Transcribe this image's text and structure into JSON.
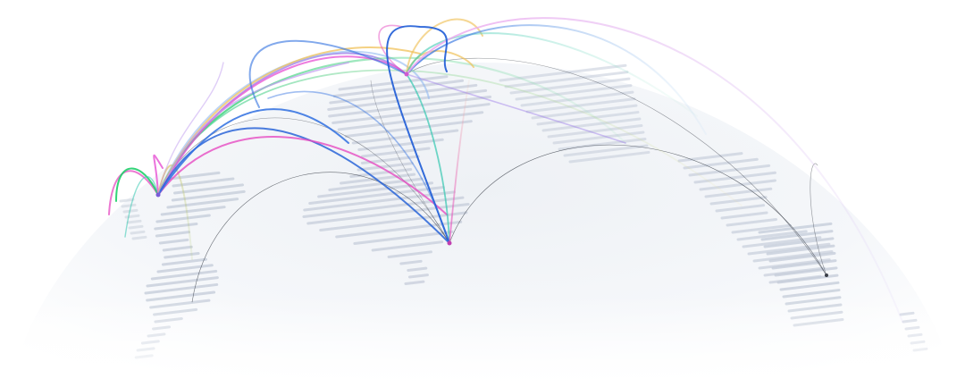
{
  "colors": {
    "background": "#ffffff",
    "globe_fill": "#f3f5f8",
    "land_dash": "#c3cbd8",
    "thin_arc": "#3a3f48"
  },
  "palette": {
    "pink": "#e64bc2",
    "magenta": "#e85bd6",
    "green": "#1fcf6a",
    "teal": "#35c8b0",
    "blue": "#2f6fe0",
    "royal": "#1d5bd6",
    "yellow": "#f0c25a",
    "lilac": "#c09cf0",
    "orchid": "#eea6ee",
    "sky": "#8fb8f0",
    "violet": "#9b7be8"
  },
  "hubs": [
    "hub-left",
    "hub-center-top",
    "hub-center",
    "hub-right"
  ]
}
